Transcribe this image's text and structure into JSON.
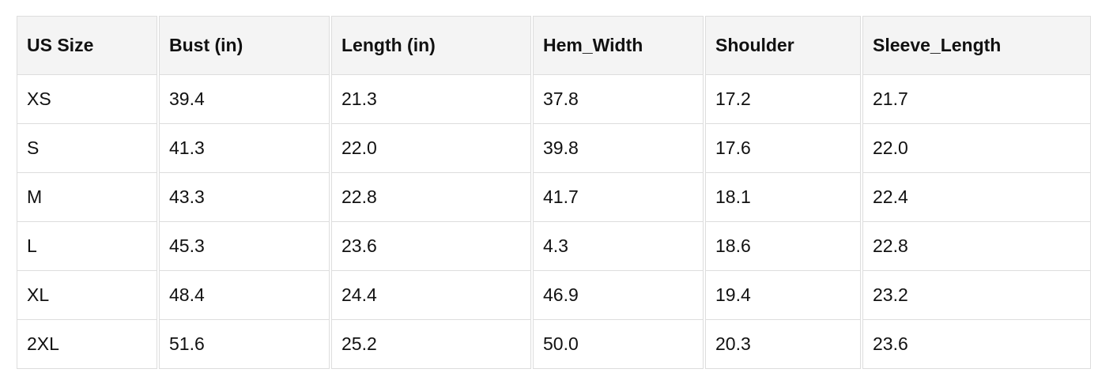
{
  "table": {
    "headers": [
      "US Size",
      "Bust (in)",
      "Length (in)",
      "Hem_Width",
      "Shoulder",
      "Sleeve_Length"
    ],
    "rows": [
      [
        "XS",
        "39.4",
        "21.3",
        "37.8",
        "17.2",
        "21.7"
      ],
      [
        "S",
        "41.3",
        "22.0",
        "39.8",
        "17.6",
        "22.0"
      ],
      [
        "M",
        "43.3",
        "22.8",
        "41.7",
        "18.1",
        "22.4"
      ],
      [
        "L",
        "45.3",
        "23.6",
        "4.3",
        "18.6",
        "22.8"
      ],
      [
        "XL",
        "48.4",
        "24.4",
        "46.9",
        "19.4",
        "23.2"
      ],
      [
        "2XL",
        "51.6",
        "25.2",
        "50.0",
        "20.3",
        "23.6"
      ]
    ]
  }
}
